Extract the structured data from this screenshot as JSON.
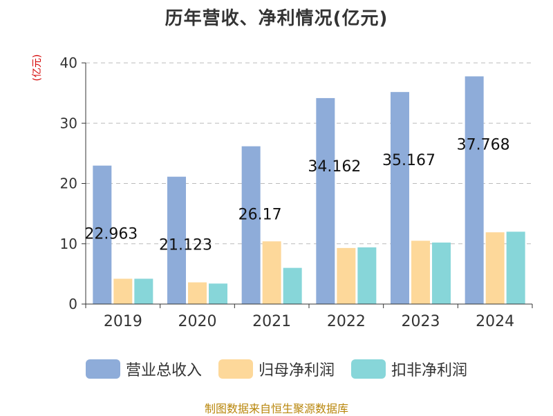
{
  "chart_data": {
    "type": "bar",
    "title": "历年营收、净利情况(亿元)",
    "unit_label": "(亿元)",
    "categories": [
      "2019",
      "2020",
      "2021",
      "2022",
      "2023",
      "2024"
    ],
    "series": [
      {
        "name": "营业总收入",
        "color": "#8eacd9",
        "values": [
          22.963,
          21.123,
          26.17,
          34.162,
          35.167,
          37.768
        ]
      },
      {
        "name": "归母净利润",
        "color": "#fdd89a",
        "values": [
          4.2,
          3.6,
          10.4,
          9.3,
          10.5,
          11.9
        ]
      },
      {
        "name": "扣非净利润",
        "color": "#87d6d9",
        "values": [
          4.2,
          3.4,
          6.0,
          9.4,
          10.2,
          12.0
        ]
      }
    ],
    "data_labels": [
      "22.963",
      "21.123",
      "26.17",
      "34.162",
      "35.167",
      "37.768"
    ],
    "yticks": [
      "0",
      "10",
      "20",
      "30",
      "40"
    ],
    "ylim": [
      0,
      40
    ],
    "grid": true,
    "legend_position": "bottom"
  },
  "source": "制图数据来自恒生聚源数据库"
}
